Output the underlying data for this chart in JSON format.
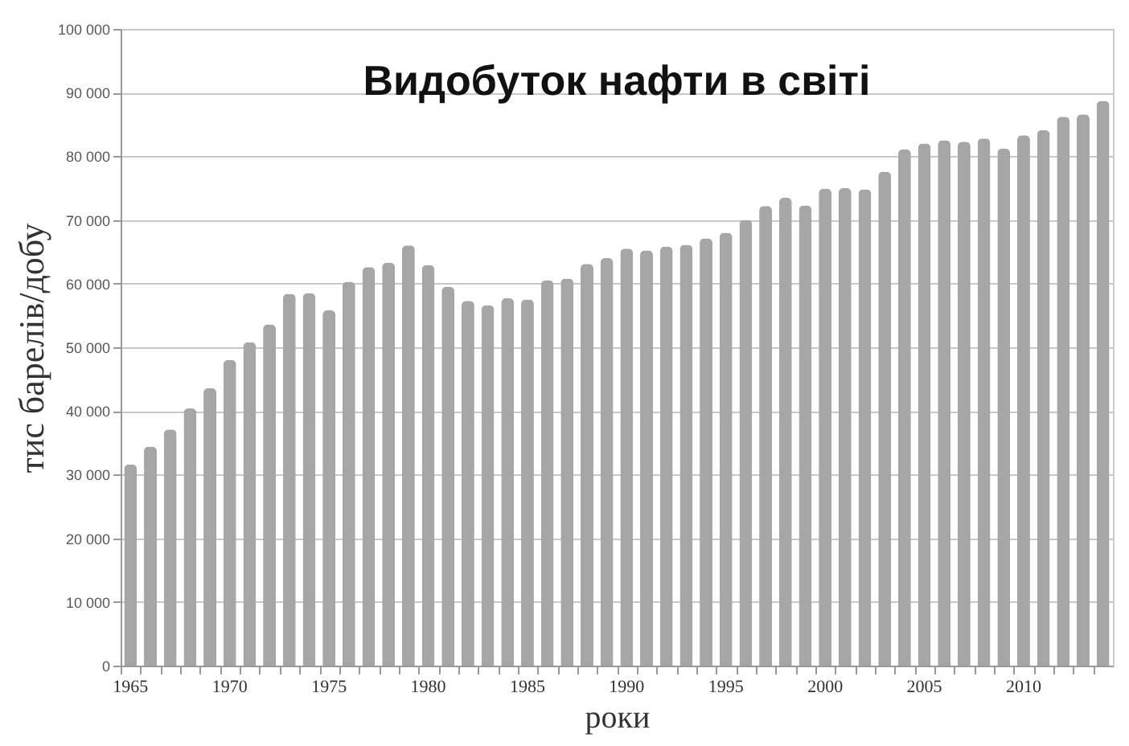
{
  "chart_data": {
    "type": "bar",
    "title": "Видобуток нафти в світі",
    "xlabel": "роки",
    "ylabel": "тис  барелів/добу",
    "categories": [
      "1965",
      null,
      null,
      null,
      null,
      "1970",
      null,
      null,
      null,
      null,
      "1975",
      null,
      null,
      null,
      null,
      "1980",
      null,
      null,
      null,
      null,
      "1985",
      null,
      null,
      null,
      null,
      "1990",
      null,
      null,
      null,
      null,
      "1995",
      null,
      null,
      null,
      null,
      "2000",
      null,
      null,
      null,
      null,
      "2005",
      null,
      null,
      null,
      null,
      "2010",
      null,
      null,
      null,
      null
    ],
    "values": [
      31600,
      34400,
      37100,
      40400,
      43600,
      48000,
      50800,
      53600,
      58400,
      58500,
      55800,
      60300,
      62600,
      63300,
      66000,
      62900,
      59500,
      57300,
      56600,
      57700,
      57500,
      60500,
      60800,
      63100,
      64000,
      65500,
      65200,
      65800,
      66100,
      67100,
      68000,
      70000,
      72200,
      73500,
      72300,
      74900,
      75000,
      74800,
      77600,
      81100,
      82000,
      82500,
      82300,
      82800,
      81200,
      83300,
      84100,
      86200,
      86600,
      88700
    ],
    "color": "#a6a6a6",
    "ylim": [
      0,
      100000
    ],
    "yticks": [
      0,
      {
        "value": 10000,
        "label": "10 000"
      },
      {
        "value": 20000,
        "label": "20 000"
      },
      {
        "value": 30000,
        "label": "30 000"
      },
      {
        "value": 40000,
        "label": "40 000"
      },
      {
        "value": 50000,
        "label": "50 000"
      },
      {
        "value": 60000,
        "label": "60 000"
      },
      {
        "value": 70000,
        "label": "70 000"
      },
      {
        "value": 80000,
        "label": "80 000"
      },
      {
        "value": 90000,
        "label": "90 000"
      },
      {
        "value": 100000,
        "label": "100 000"
      }
    ],
    "grid": "y"
  }
}
